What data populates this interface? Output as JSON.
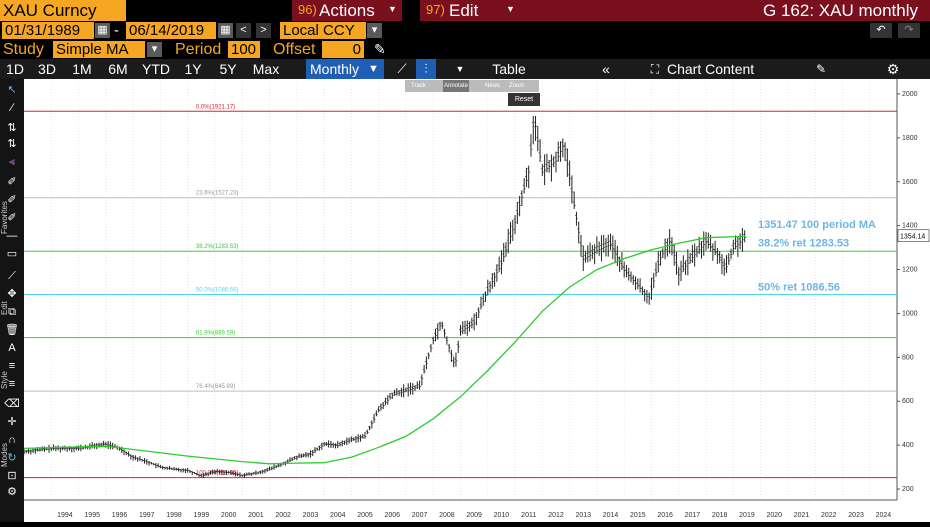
{
  "header": {
    "ticker": "XAU Curncy",
    "actions_label": "Actions",
    "actions_num": "96)",
    "edit_label": "Edit",
    "edit_num": "97)",
    "window_title": "G 162: XAU monthly"
  },
  "dates": {
    "start": "01/31/1989",
    "dash": "-",
    "end": "06/14/2019",
    "currency": "Local CCY"
  },
  "study": {
    "study_label": "Study",
    "study_value": "Simple MA",
    "period_label": "Period",
    "period_value": "100",
    "offset_label": "Offset",
    "offset_value": "0"
  },
  "toolbar": {
    "ranges": [
      "1D",
      "3D",
      "1M",
      "6M",
      "YTD",
      "1Y",
      "5Y",
      "Max"
    ],
    "frequency": "Monthly",
    "table_label": "Table",
    "chart_content_label": "Chart Content"
  },
  "mini_toolbar": {
    "track": "Track",
    "annotate": "Annotate",
    "news": "News",
    "zoom": "Zoom",
    "reset": "Reset"
  },
  "side_labels": {
    "favorites": "Favorites",
    "edit": "Edit",
    "style": "Style",
    "modes": "Modes"
  },
  "colors": {
    "amber": "#f5a623",
    "maroon": "#7a0f1e",
    "ma_line": "#2ecc2e",
    "fib_38": "#34d334",
    "fib_50": "#52d7e8",
    "fib_0": "#e0202a",
    "label_blue": "#6bb6e6"
  },
  "chart_data": {
    "type": "bar",
    "subtype": "ohlc-monthly",
    "x_axis_labels": [
      "1994",
      "1995",
      "1996",
      "1997",
      "1998",
      "1999",
      "2000",
      "2001",
      "2002",
      "2003",
      "2004",
      "2005",
      "2006",
      "2007",
      "2008",
      "2009",
      "2010",
      "2011",
      "2012",
      "2013",
      "2014",
      "2015",
      "2016",
      "2017",
      "2018",
      "2019",
      "2020",
      "2021",
      "2022",
      "2023",
      "2024"
    ],
    "y_ticks": [
      200,
      400,
      600,
      800,
      1000,
      1200,
      1400,
      1600,
      1800,
      2000
    ],
    "ylim": [
      150,
      2050
    ],
    "last_price_label": "1354.14",
    "price_series": [
      {
        "x": 1993.0,
        "y": 370
      },
      {
        "x": 1994.0,
        "y": 385
      },
      {
        "x": 1995.0,
        "y": 385
      },
      {
        "x": 1996.0,
        "y": 405
      },
      {
        "x": 1996.5,
        "y": 385
      },
      {
        "x": 1997.0,
        "y": 345
      },
      {
        "x": 1997.5,
        "y": 325
      },
      {
        "x": 1998.0,
        "y": 300
      },
      {
        "x": 1998.5,
        "y": 290
      },
      {
        "x": 1999.0,
        "y": 285
      },
      {
        "x": 1999.5,
        "y": 260
      },
      {
        "x": 2000.0,
        "y": 280
      },
      {
        "x": 2000.5,
        "y": 275
      },
      {
        "x": 2001.0,
        "y": 262
      },
      {
        "x": 2001.5,
        "y": 272
      },
      {
        "x": 2002.0,
        "y": 290
      },
      {
        "x": 2002.5,
        "y": 315
      },
      {
        "x": 2003.0,
        "y": 345
      },
      {
        "x": 2003.5,
        "y": 360
      },
      {
        "x": 2004.0,
        "y": 405
      },
      {
        "x": 2004.5,
        "y": 400
      },
      {
        "x": 2005.0,
        "y": 425
      },
      {
        "x": 2005.5,
        "y": 440
      },
      {
        "x": 2006.0,
        "y": 560
      },
      {
        "x": 2006.5,
        "y": 630
      },
      {
        "x": 2007.0,
        "y": 650
      },
      {
        "x": 2007.5,
        "y": 670
      },
      {
        "x": 2008.0,
        "y": 880
      },
      {
        "x": 2008.3,
        "y": 960
      },
      {
        "x": 2008.8,
        "y": 760
      },
      {
        "x": 2009.0,
        "y": 920
      },
      {
        "x": 2009.5,
        "y": 960
      },
      {
        "x": 2010.0,
        "y": 1110
      },
      {
        "x": 2010.5,
        "y": 1230
      },
      {
        "x": 2011.0,
        "y": 1420
      },
      {
        "x": 2011.5,
        "y": 1650
      },
      {
        "x": 2011.7,
        "y": 1900
      },
      {
        "x": 2012.0,
        "y": 1650
      },
      {
        "x": 2012.5,
        "y": 1700
      },
      {
        "x": 2012.8,
        "y": 1780
      },
      {
        "x": 2013.0,
        "y": 1620
      },
      {
        "x": 2013.3,
        "y": 1400
      },
      {
        "x": 2013.5,
        "y": 1250
      },
      {
        "x": 2014.0,
        "y": 1290
      },
      {
        "x": 2014.5,
        "y": 1320
      },
      {
        "x": 2015.0,
        "y": 1200
      },
      {
        "x": 2015.5,
        "y": 1130
      },
      {
        "x": 2015.9,
        "y": 1070
      },
      {
        "x": 2016.3,
        "y": 1250
      },
      {
        "x": 2016.7,
        "y": 1340
      },
      {
        "x": 2017.0,
        "y": 1180
      },
      {
        "x": 2017.5,
        "y": 1260
      },
      {
        "x": 2018.0,
        "y": 1330
      },
      {
        "x": 2018.5,
        "y": 1260
      },
      {
        "x": 2018.7,
        "y": 1200
      },
      {
        "x": 2019.0,
        "y": 1300
      },
      {
        "x": 2019.45,
        "y": 1354
      }
    ],
    "ma_series": [
      {
        "x": 1993.0,
        "y": 385
      },
      {
        "x": 1996.0,
        "y": 395
      },
      {
        "x": 1999.0,
        "y": 350
      },
      {
        "x": 2001.0,
        "y": 325
      },
      {
        "x": 2002.0,
        "y": 315
      },
      {
        "x": 2003.0,
        "y": 318
      },
      {
        "x": 2004.0,
        "y": 320
      },
      {
        "x": 2005.0,
        "y": 345
      },
      {
        "x": 2006.0,
        "y": 390
      },
      {
        "x": 2007.0,
        "y": 440
      },
      {
        "x": 2008.0,
        "y": 520
      },
      {
        "x": 2009.0,
        "y": 620
      },
      {
        "x": 2010.0,
        "y": 740
      },
      {
        "x": 2011.0,
        "y": 870
      },
      {
        "x": 2012.0,
        "y": 1010
      },
      {
        "x": 2013.0,
        "y": 1120
      },
      {
        "x": 2014.0,
        "y": 1200
      },
      {
        "x": 2015.0,
        "y": 1250
      },
      {
        "x": 2016.0,
        "y": 1290
      },
      {
        "x": 2017.0,
        "y": 1320
      },
      {
        "x": 2018.0,
        "y": 1345
      },
      {
        "x": 2019.45,
        "y": 1351
      }
    ],
    "fib_lines": [
      {
        "label": "0.0%(1921.17)",
        "value": 1921.17,
        "color": "#e0202a"
      },
      {
        "label": "23.6%(1527.23)",
        "value": 1527.23,
        "color": "#bdbdbd"
      },
      {
        "label": "38.2%(1283.53)",
        "value": 1283.53,
        "color": "#34d334"
      },
      {
        "label": "50.0%(1086.56)",
        "value": 1086.56,
        "color": "#52d7e8"
      },
      {
        "label": "61.8%(889.59)",
        "value": 889.59,
        "color": "#34d334"
      },
      {
        "label": "76.4%(645.89)",
        "value": 645.89,
        "color": "#bdbdbd"
      },
      {
        "label": "100.0%(251.95)",
        "value": 251.95,
        "color": "#e0202a"
      }
    ],
    "annotations": [
      {
        "text": "1351.47 100 period MA",
        "color": "#6bb6e6"
      },
      {
        "text": "38.2% ret 1283.53",
        "color": "#6bb6e6"
      },
      {
        "text": "50% ret 1086.56",
        "color": "#6bb6e6"
      }
    ]
  }
}
